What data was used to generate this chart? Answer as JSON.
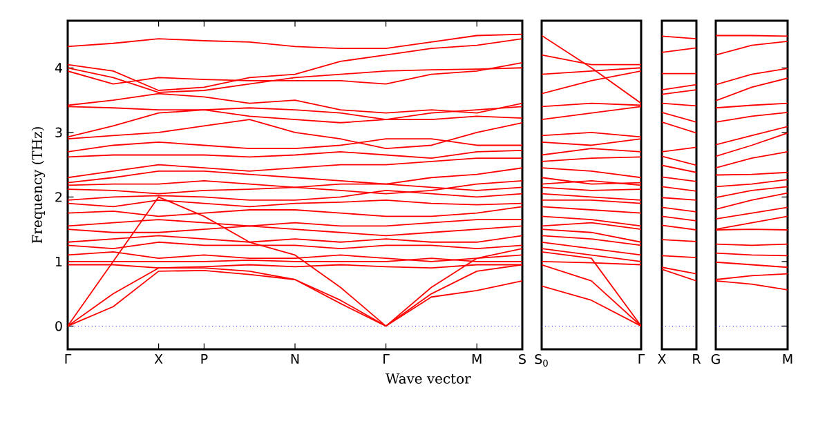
{
  "chart_data": [
    {
      "type": "line",
      "xlabel": "Wave vector",
      "ylabel": "Frequency (THz)",
      "color": "#ff0000",
      "ylim": [
        -0.36,
        4.73
      ],
      "categories": [
        "Γ",
        null,
        "X",
        "P",
        null,
        "N",
        null,
        "Γ",
        null,
        "M",
        "S"
      ],
      "yticks": [
        0,
        1,
        2,
        3,
        4
      ],
      "ref_lines": [
        {
          "axis": "y",
          "value": 0,
          "color": "#0000ff",
          "line_style": "dotted"
        }
      ],
      "series": [
        {
          "values": [
            0,
            0.3,
            0.85,
            0.86,
            0.8,
            0.72,
            0.35,
            0,
            0.45,
            0.55,
            0.7
          ]
        },
        {
          "values": [
            0,
            0.5,
            0.9,
            0.9,
            0.85,
            0.72,
            0.4,
            0,
            0.5,
            0.85,
            0.95
          ]
        },
        {
          "values": [
            0,
            1.0,
            2.0,
            1.7,
            1.3,
            1.1,
            0.6,
            0,
            0.6,
            1.05,
            1.2
          ]
        },
        {
          "values": [
            4.33,
            4.38,
            4.45,
            4.42,
            4.4,
            4.33,
            4.3,
            4.3,
            4.4,
            4.5,
            4.52
          ]
        },
        {
          "values": [
            4.05,
            3.95,
            3.65,
            3.7,
            3.85,
            3.9,
            4.1,
            4.2,
            4.3,
            4.35,
            4.45
          ]
        },
        {
          "values": [
            4.0,
            3.85,
            3.62,
            3.65,
            3.75,
            3.85,
            3.9,
            3.95,
            3.97,
            3.98,
            4.0
          ]
        },
        {
          "values": [
            3.95,
            3.75,
            3.85,
            3.82,
            3.8,
            3.8,
            3.8,
            3.75,
            3.9,
            3.95,
            4.08
          ]
        },
        {
          "values": [
            3.42,
            3.5,
            3.6,
            3.55,
            3.45,
            3.5,
            3.35,
            3.3,
            3.35,
            3.3,
            3.45
          ]
        },
        {
          "values": [
            3.4,
            3.38,
            3.35,
            3.35,
            3.38,
            3.35,
            3.3,
            3.2,
            3.3,
            3.35,
            3.4
          ]
        },
        {
          "values": [
            2.93,
            3.1,
            3.3,
            3.35,
            3.25,
            3.2,
            3.15,
            3.2,
            3.2,
            3.25,
            3.22
          ]
        },
        {
          "values": [
            2.9,
            2.95,
            3.0,
            3.1,
            3.2,
            3.0,
            2.9,
            2.75,
            2.8,
            3.0,
            3.15
          ]
        },
        {
          "values": [
            2.7,
            2.8,
            2.85,
            2.8,
            2.75,
            2.75,
            2.8,
            2.9,
            2.9,
            2.8,
            2.8
          ]
        },
        {
          "values": [
            2.62,
            2.65,
            2.65,
            2.65,
            2.62,
            2.65,
            2.7,
            2.65,
            2.6,
            2.7,
            2.72
          ]
        },
        {
          "values": [
            2.3,
            2.4,
            2.5,
            2.45,
            2.4,
            2.45,
            2.5,
            2.5,
            2.55,
            2.6,
            2.6
          ]
        },
        {
          "values": [
            2.22,
            2.3,
            2.4,
            2.4,
            2.35,
            2.3,
            2.25,
            2.2,
            2.3,
            2.35,
            2.45
          ]
        },
        {
          "values": [
            2.18,
            2.2,
            2.2,
            2.25,
            2.2,
            2.15,
            2.1,
            2.05,
            2.1,
            2.2,
            2.25
          ]
        },
        {
          "values": [
            2.12,
            2.1,
            2.05,
            2.1,
            2.12,
            2.15,
            2.2,
            2.2,
            2.15,
            2.1,
            2.15
          ]
        },
        {
          "values": [
            1.95,
            2.0,
            2.02,
            2.0,
            1.95,
            1.95,
            2.0,
            2.1,
            2.05,
            2.0,
            2.05
          ]
        },
        {
          "values": [
            1.9,
            1.85,
            1.95,
            1.9,
            1.85,
            1.9,
            1.92,
            1.95,
            1.9,
            1.88,
            1.9
          ]
        },
        {
          "values": [
            1.75,
            1.78,
            1.7,
            1.75,
            1.8,
            1.8,
            1.75,
            1.7,
            1.7,
            1.75,
            1.85
          ]
        },
        {
          "values": [
            1.55,
            1.6,
            1.65,
            1.6,
            1.55,
            1.6,
            1.55,
            1.55,
            1.6,
            1.65,
            1.65
          ]
        },
        {
          "values": [
            1.5,
            1.45,
            1.45,
            1.5,
            1.55,
            1.5,
            1.45,
            1.4,
            1.45,
            1.5,
            1.55
          ]
        },
        {
          "values": [
            1.3,
            1.35,
            1.4,
            1.35,
            1.3,
            1.35,
            1.3,
            1.35,
            1.3,
            1.3,
            1.4
          ]
        },
        {
          "values": [
            1.25,
            1.2,
            1.3,
            1.25,
            1.25,
            1.25,
            1.2,
            1.25,
            1.25,
            1.2,
            1.25
          ]
        },
        {
          "values": [
            1.1,
            1.15,
            1.05,
            1.1,
            1.05,
            1.05,
            1.1,
            1.05,
            1.0,
            1.05,
            1.1
          ]
        },
        {
          "values": [
            1.0,
            1.0,
            1.0,
            1.0,
            1.02,
            1.0,
            1.0,
            1.0,
            1.05,
            1.0,
            1.0
          ]
        },
        {
          "values": [
            0.95,
            0.95,
            0.9,
            0.92,
            0.95,
            0.92,
            0.95,
            0.92,
            0.9,
            0.95,
            0.95
          ]
        }
      ]
    },
    {
      "type": "line",
      "color": "#ff0000",
      "tick_labels": "x",
      "ylim": [
        -0.36,
        4.73
      ],
      "categories": [
        "S$_{0}$",
        null,
        "Γ"
      ],
      "yticks": [
        0,
        1,
        2,
        3,
        4
      ],
      "ref_lines": [
        {
          "axis": "y",
          "value": 0,
          "color": "#0000ff",
          "line_style": "dotted"
        }
      ],
      "series": [
        {
          "values": [
            0.62,
            0.4,
            0
          ]
        },
        {
          "values": [
            0.95,
            0.7,
            0
          ]
        },
        {
          "values": [
            1.15,
            1.05,
            0
          ]
        },
        {
          "values": [
            1.0,
            0.98,
            0.95
          ]
        },
        {
          "values": [
            1.2,
            1.1,
            1.0
          ]
        },
        {
          "values": [
            1.3,
            1.2,
            1.1
          ]
        },
        {
          "values": [
            1.4,
            1.35,
            1.25
          ]
        },
        {
          "values": [
            1.5,
            1.45,
            1.3
          ]
        },
        {
          "values": [
            1.55,
            1.6,
            1.5
          ]
        },
        {
          "values": [
            1.7,
            1.65,
            1.55
          ]
        },
        {
          "values": [
            1.85,
            1.8,
            1.75
          ]
        },
        {
          "values": [
            1.95,
            1.95,
            1.9
          ]
        },
        {
          "values": [
            2.05,
            2.0,
            1.95
          ]
        },
        {
          "values": [
            2.15,
            2.1,
            2.12
          ]
        },
        {
          "values": [
            2.2,
            2.25,
            2.18
          ]
        },
        {
          "values": [
            2.3,
            2.2,
            2.22
          ]
        },
        {
          "values": [
            2.45,
            2.4,
            2.3
          ]
        },
        {
          "values": [
            2.55,
            2.6,
            2.62
          ]
        },
        {
          "values": [
            2.65,
            2.75,
            2.7
          ]
        },
        {
          "values": [
            2.85,
            2.8,
            2.9
          ]
        },
        {
          "values": [
            2.95,
            3.0,
            2.93
          ]
        },
        {
          "values": [
            3.2,
            3.3,
            3.4
          ]
        },
        {
          "values": [
            3.4,
            3.45,
            3.42
          ]
        },
        {
          "values": [
            3.6,
            3.8,
            3.95
          ]
        },
        {
          "values": [
            3.9,
            3.95,
            4.0
          ]
        },
        {
          "values": [
            4.2,
            4.05,
            4.05
          ]
        },
        {
          "values": [
            4.5,
            4.0,
            3.45
          ]
        }
      ]
    },
    {
      "type": "line",
      "color": "#ff0000",
      "tick_labels": "x",
      "ylim": [
        -0.36,
        4.73
      ],
      "categories": [
        "X",
        "R"
      ],
      "yticks": [
        0,
        1,
        2,
        3,
        4
      ],
      "ref_lines": [
        {
          "axis": "y",
          "value": 0,
          "color": "#0000ff",
          "line_style": "dotted"
        }
      ],
      "series": [
        {
          "values": [
            0.88,
            0.7
          ]
        },
        {
          "values": [
            0.91,
            0.81
          ]
        },
        {
          "values": [
            1.09,
            1.06
          ]
        },
        {
          "values": [
            1.34,
            1.31
          ]
        },
        {
          "values": [
            1.56,
            1.49
          ]
        },
        {
          "values": [
            1.7,
            1.63
          ]
        },
        {
          "values": [
            1.84,
            1.77
          ]
        },
        {
          "values": [
            1.99,
            1.95
          ]
        },
        {
          "values": [
            2.16,
            2.09
          ]
        },
        {
          "values": [
            2.31,
            2.24
          ]
        },
        {
          "values": [
            2.49,
            2.38
          ]
        },
        {
          "values": [
            2.63,
            2.49
          ]
        },
        {
          "values": [
            2.7,
            2.77
          ]
        },
        {
          "values": [
            3.16,
            2.99
          ]
        },
        {
          "values": [
            3.31,
            3.16
          ]
        },
        {
          "values": [
            3.45,
            3.41
          ]
        },
        {
          "values": [
            3.59,
            3.66
          ]
        },
        {
          "values": [
            3.66,
            3.74
          ]
        },
        {
          "values": [
            3.91,
            3.91
          ]
        },
        {
          "values": [
            4.24,
            4.31
          ]
        },
        {
          "values": [
            4.49,
            4.45
          ]
        }
      ]
    },
    {
      "type": "line",
      "color": "#ff0000",
      "tick_labels": "x",
      "ylim": [
        -0.36,
        4.73
      ],
      "categories": [
        "G",
        null,
        "M"
      ],
      "yticks": [
        0,
        1,
        2,
        3,
        4
      ],
      "ref_lines": [
        {
          "axis": "y",
          "value": 0,
          "color": "#0000ff",
          "line_style": "dotted"
        }
      ],
      "series": [
        {
          "values": [
            0.7,
            0.65,
            0.56
          ]
        },
        {
          "values": [
            0.72,
            0.78,
            0.81
          ]
        },
        {
          "values": [
            0.99,
            0.95,
            0.91
          ]
        },
        {
          "values": [
            1.13,
            1.1,
            1.09
          ]
        },
        {
          "values": [
            1.27,
            1.25,
            1.27
          ]
        },
        {
          "values": [
            1.49,
            1.5,
            1.49
          ]
        },
        {
          "values": [
            1.5,
            1.6,
            1.7
          ]
        },
        {
          "values": [
            1.66,
            1.75,
            1.84
          ]
        },
        {
          "values": [
            1.81,
            1.95,
            2.06
          ]
        },
        {
          "values": [
            1.99,
            2.1,
            2.16
          ]
        },
        {
          "values": [
            2.16,
            2.2,
            2.27
          ]
        },
        {
          "values": [
            2.34,
            2.35,
            2.38
          ]
        },
        {
          "values": [
            2.45,
            2.6,
            2.7
          ]
        },
        {
          "values": [
            2.63,
            2.8,
            2.99
          ]
        },
        {
          "values": [
            2.81,
            2.95,
            3.09
          ]
        },
        {
          "values": [
            3.16,
            3.25,
            3.31
          ]
        },
        {
          "values": [
            3.38,
            3.42,
            3.45
          ]
        },
        {
          "values": [
            3.49,
            3.7,
            3.84
          ]
        },
        {
          "values": [
            3.74,
            3.9,
            3.99
          ]
        },
        {
          "values": [
            4.2,
            4.35,
            4.41
          ]
        },
        {
          "values": [
            4.5,
            4.5,
            4.49
          ]
        }
      ]
    }
  ]
}
